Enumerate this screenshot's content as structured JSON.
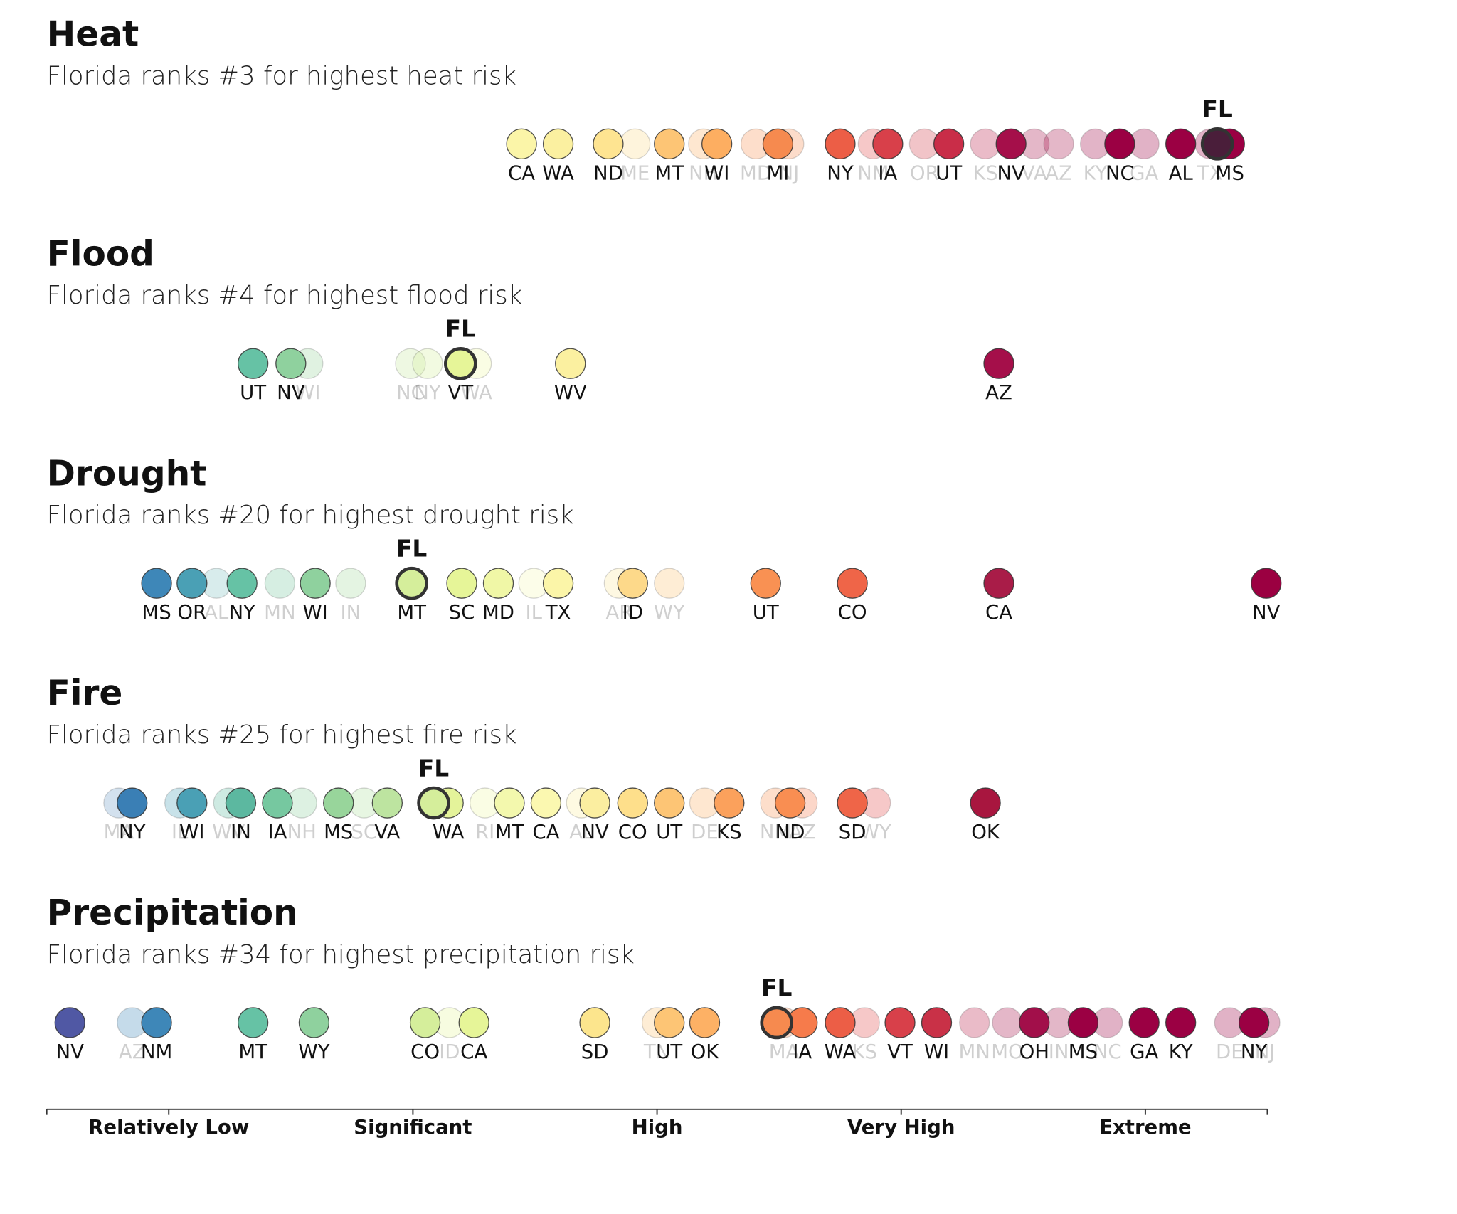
{
  "chart_data": {
    "type": "strip",
    "xlim": [
      0,
      100
    ],
    "xticks": [
      {
        "value": 10,
        "label": "Relatively Low"
      },
      {
        "value": 30,
        "label": "Significant"
      },
      {
        "value": 50,
        "label": "High"
      },
      {
        "value": 70,
        "label": "Very High"
      },
      {
        "value": 90,
        "label": "Extreme"
      }
    ],
    "panels": [
      {
        "title": "Heat",
        "subtitle": "Florida ranks #3 for highest heat risk",
        "points": [
          {
            "label": "CA",
            "value": 38.9,
            "color": "#fbf5a8"
          },
          {
            "label": "WA",
            "value": 41.9,
            "color": "#fbf0a0"
          },
          {
            "label": "ND",
            "value": 46.0,
            "color": "#fee491"
          },
          {
            "label": "ME",
            "value": 48.2,
            "color": "#fdd98a",
            "faded": true
          },
          {
            "label": "MT",
            "value": 51.0,
            "color": "#fdc575"
          },
          {
            "label": "NH",
            "value": 53.8,
            "color": "#fdb165",
            "faded": true
          },
          {
            "label": "WI",
            "value": 54.9,
            "color": "#fdae61"
          },
          {
            "label": "MD",
            "value": 58.1,
            "color": "#f99153",
            "faded": true
          },
          {
            "label": "MI",
            "value": 59.9,
            "color": "#f68a4f"
          },
          {
            "label": "NJ",
            "value": 60.8,
            "color": "#f68a4f",
            "faded": true
          },
          {
            "label": "NY",
            "value": 65.0,
            "color": "#ec5e46"
          },
          {
            "label": "NM",
            "value": 67.7,
            "color": "#e04a4a",
            "faded": true
          },
          {
            "label": "IA",
            "value": 68.9,
            "color": "#d8404a"
          },
          {
            "label": "OR",
            "value": 71.9,
            "color": "#d03a4a",
            "faded": true
          },
          {
            "label": "UT",
            "value": 73.9,
            "color": "#c92d48"
          },
          {
            "label": "KS",
            "value": 76.9,
            "color": "#b81e48",
            "faded": true
          },
          {
            "label": "NV",
            "value": 79.0,
            "color": "#a50f4a"
          },
          {
            "label": "VA",
            "value": 80.9,
            "color": "#a50f4a",
            "faded": true
          },
          {
            "label": "AZ",
            "value": 82.9,
            "color": "#a50f4a",
            "faded": true
          },
          {
            "label": "KY",
            "value": 85.9,
            "color": "#9e0744",
            "faded": true
          },
          {
            "label": "NC",
            "value": 87.9,
            "color": "#9b0043"
          },
          {
            "label": "GA",
            "value": 89.9,
            "color": "#9b0043",
            "faded": true
          },
          {
            "label": "AL",
            "value": 92.9,
            "color": "#9b0043"
          },
          {
            "label": "TX",
            "value": 95.3,
            "color": "#9b0043",
            "faded": true
          },
          {
            "label": "FL",
            "value": 95.9,
            "color": "#4a1e3a",
            "highlight": true
          },
          {
            "label": "MS",
            "value": 96.9,
            "color": "#9b0043"
          }
        ]
      },
      {
        "title": "Flood",
        "subtitle": "Florida ranks #4 for highest flood risk",
        "points": [
          {
            "label": "UT",
            "value": 16.9,
            "color": "#66c2a5"
          },
          {
            "label": "NV",
            "value": 20.0,
            "color": "#8fd19e"
          },
          {
            "label": "WI",
            "value": 21.4,
            "color": "#98d59b",
            "faded": true
          },
          {
            "label": "NC",
            "value": 29.8,
            "color": "#c7e9a0",
            "faded": true
          },
          {
            "label": "NY",
            "value": 31.2,
            "color": "#d5ee9b",
            "faded": true
          },
          {
            "label": "VT",
            "value": 33.9,
            "color": "#e6f598"
          },
          {
            "label": "FL",
            "value": 33.9,
            "color": "#e6f598",
            "highlight": true
          },
          {
            "label": "WA",
            "value": 35.2,
            "color": "#eef7a6",
            "faded": true
          },
          {
            "label": "WV",
            "value": 42.9,
            "color": "#fbf0a0"
          },
          {
            "label": "AZ",
            "value": 78.0,
            "color": "#a50f4a"
          }
        ]
      },
      {
        "title": "Drought",
        "subtitle": "Florida ranks #20 for highest drought risk",
        "points": [
          {
            "label": "MS",
            "value": 9.0,
            "color": "#3e87b8"
          },
          {
            "label": "OR",
            "value": 11.9,
            "color": "#4aa0b5"
          },
          {
            "label": "AL",
            "value": 13.9,
            "color": "#7fbfc0",
            "faded": true
          },
          {
            "label": "NY",
            "value": 16.0,
            "color": "#66c2a5"
          },
          {
            "label": "MN",
            "value": 19.1,
            "color": "#76c8a0",
            "faded": true
          },
          {
            "label": "WI",
            "value": 22.0,
            "color": "#8fd19e"
          },
          {
            "label": "IN",
            "value": 24.9,
            "color": "#a6db9e",
            "faded": true
          },
          {
            "label": "MT",
            "value": 29.9,
            "color": "#d5ee9b"
          },
          {
            "label": "FL",
            "value": 29.9,
            "color": "#d5ee9b",
            "highlight": true
          },
          {
            "label": "SC",
            "value": 34.0,
            "color": "#e6f598"
          },
          {
            "label": "MD",
            "value": 37.0,
            "color": "#f0f7a6"
          },
          {
            "label": "IL",
            "value": 39.9,
            "color": "#f5f8b5",
            "faded": true
          },
          {
            "label": "TX",
            "value": 41.9,
            "color": "#fbf5a8"
          },
          {
            "label": "AR",
            "value": 46.9,
            "color": "#fde9a0",
            "faded": true
          },
          {
            "label": "ID",
            "value": 48.0,
            "color": "#fdd98a"
          },
          {
            "label": "WY",
            "value": 51.0,
            "color": "#fdc575",
            "faded": true
          },
          {
            "label": "UT",
            "value": 58.9,
            "color": "#f99153"
          },
          {
            "label": "CO",
            "value": 66.0,
            "color": "#ef6548"
          },
          {
            "label": "CA",
            "value": 78.0,
            "color": "#a91c48"
          },
          {
            "label": "NV",
            "value": 99.9,
            "color": "#9b0041"
          }
        ]
      },
      {
        "title": "Fire",
        "subtitle": "Florida ranks #25 for highest fire risk",
        "points": [
          {
            "label": "MA",
            "value": 5.9,
            "color": "#6d9ac8",
            "faded": true
          },
          {
            "label": "NY",
            "value": 7.0,
            "color": "#3a7fb5"
          },
          {
            "label": "IL",
            "value": 10.9,
            "color": "#4aa0b5",
            "faded": true
          },
          {
            "label": "WI",
            "value": 11.9,
            "color": "#4aa0b5"
          },
          {
            "label": "WV",
            "value": 14.9,
            "color": "#5cb8a0",
            "faded": true
          },
          {
            "label": "IN",
            "value": 15.9,
            "color": "#5cb8a0"
          },
          {
            "label": "IA",
            "value": 18.9,
            "color": "#76c8a0"
          },
          {
            "label": "NH",
            "value": 20.9,
            "color": "#8fd19e",
            "faded": true
          },
          {
            "label": "MS",
            "value": 23.9,
            "color": "#98d59b"
          },
          {
            "label": "SC",
            "value": 26.0,
            "color": "#b0e0a0",
            "faded": true
          },
          {
            "label": "VA",
            "value": 27.9,
            "color": "#bde4a0"
          },
          {
            "label": "FL",
            "value": 31.7,
            "color": "#d5ee9b",
            "highlight": true
          },
          {
            "label": "WA",
            "value": 32.9,
            "color": "#e4f39a"
          },
          {
            "label": "RI",
            "value": 35.9,
            "color": "#eef7a6",
            "faded": true
          },
          {
            "label": "MT",
            "value": 37.9,
            "color": "#f3f8ad"
          },
          {
            "label": "CA",
            "value": 40.9,
            "color": "#fbf8b0"
          },
          {
            "label": "AL",
            "value": 43.8,
            "color": "#fbf0a0",
            "faded": true
          },
          {
            "label": "NV",
            "value": 44.9,
            "color": "#fbeea0"
          },
          {
            "label": "CO",
            "value": 48.0,
            "color": "#fedf8b"
          },
          {
            "label": "UT",
            "value": 51.0,
            "color": "#fdc575"
          },
          {
            "label": "DE",
            "value": 53.9,
            "color": "#fdb165",
            "faded": true
          },
          {
            "label": "KS",
            "value": 55.9,
            "color": "#fba15c"
          },
          {
            "label": "NM",
            "value": 59.7,
            "color": "#f99153",
            "faded": true
          },
          {
            "label": "ND",
            "value": 60.9,
            "color": "#f98e52"
          },
          {
            "label": "AZ",
            "value": 61.9,
            "color": "#f67b4b",
            "faded": true
          },
          {
            "label": "SD",
            "value": 66.0,
            "color": "#ef6548"
          },
          {
            "label": "WY",
            "value": 67.9,
            "color": "#e04a4a",
            "faded": true
          },
          {
            "label": "OK",
            "value": 76.9,
            "color": "#a8163f"
          }
        ]
      },
      {
        "title": "Precipitation",
        "subtitle": "Florida ranks #34 for highest precipitation risk",
        "points": [
          {
            "label": "NV",
            "value": 1.9,
            "color": "#5058a4"
          },
          {
            "label": "AZ",
            "value": 7.0,
            "color": "#3e87b8",
            "faded": true
          },
          {
            "label": "NM",
            "value": 9.0,
            "color": "#3e87b8"
          },
          {
            "label": "MT",
            "value": 16.9,
            "color": "#66c2a5"
          },
          {
            "label": "WY",
            "value": 21.9,
            "color": "#8fd19e"
          },
          {
            "label": "CO",
            "value": 31.0,
            "color": "#d5ee9b"
          },
          {
            "label": "ID",
            "value": 33.0,
            "color": "#e6f598",
            "faded": true
          },
          {
            "label": "CA",
            "value": 35.0,
            "color": "#e6f598"
          },
          {
            "label": "SD",
            "value": 44.9,
            "color": "#fce58d"
          },
          {
            "label": "TN",
            "value": 50.0,
            "color": "#fdc575",
            "faded": true
          },
          {
            "label": "UT",
            "value": 51.0,
            "color": "#fdc575"
          },
          {
            "label": "OK",
            "value": 53.9,
            "color": "#fdb165"
          },
          {
            "label": "FL",
            "value": 59.8,
            "color": "#f68a4f",
            "highlight": true
          },
          {
            "label": "MA",
            "value": 60.4,
            "color": "#f68a4f",
            "faded": true
          },
          {
            "label": "IA",
            "value": 61.9,
            "color": "#f67b4b"
          },
          {
            "label": "WA",
            "value": 65.0,
            "color": "#ec5e46"
          },
          {
            "label": "KS",
            "value": 67.0,
            "color": "#e04a4a",
            "faded": true
          },
          {
            "label": "VT",
            "value": 69.9,
            "color": "#d8404a"
          },
          {
            "label": "WI",
            "value": 72.9,
            "color": "#c93147"
          },
          {
            "label": "MN",
            "value": 76.0,
            "color": "#b81e48",
            "faded": true
          },
          {
            "label": "MO",
            "value": 78.7,
            "color": "#a50f4a",
            "faded": true
          },
          {
            "label": "OH",
            "value": 80.9,
            "color": "#a20f4a"
          },
          {
            "label": "IN",
            "value": 82.9,
            "color": "#a20f4a",
            "faded": true
          },
          {
            "label": "MS",
            "value": 84.9,
            "color": "#9b0043"
          },
          {
            "label": "NC",
            "value": 86.9,
            "color": "#9b0043",
            "faded": true
          },
          {
            "label": "GA",
            "value": 89.9,
            "color": "#9b0043"
          },
          {
            "label": "KY",
            "value": 92.9,
            "color": "#9b0043"
          },
          {
            "label": "DE",
            "value": 96.9,
            "color": "#9b0043",
            "faded": true
          },
          {
            "label": "NY",
            "value": 98.9,
            "color": "#9b0043"
          },
          {
            "label": "NJ",
            "value": 99.8,
            "color": "#9b0043",
            "faded": true
          }
        ]
      }
    ]
  }
}
